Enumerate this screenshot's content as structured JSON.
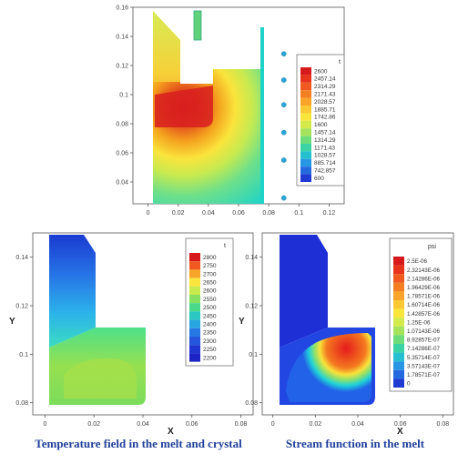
{
  "chart_data": [
    {
      "type": "contour",
      "title": "",
      "xlabel": "",
      "ylabel": "",
      "x_ticks": [
        "0",
        "0.02",
        "0.04",
        "0.06",
        "0.08",
        "0.1",
        "0.12"
      ],
      "y_ticks": [
        "0.04",
        "0.06",
        "0.08",
        "0.1",
        "0.12",
        "0.14",
        "0.16"
      ],
      "xlim": [
        -0.01,
        0.13
      ],
      "ylim": [
        0.025,
        0.16
      ],
      "legend": {
        "title": "t",
        "placement": "right",
        "values": [
          "2600",
          "2457.14",
          "2314.29",
          "2171.43",
          "2028.57",
          "1885.71",
          "1742.86",
          "1600",
          "1457.14",
          "1314.29",
          "1171.43",
          "1028.57",
          "885.714",
          "742.857",
          "600"
        ]
      },
      "markers_x": 0.09,
      "markers_y": [
        0.128,
        0.11,
        0.093,
        0.074,
        0.055,
        0.029
      ]
    },
    {
      "type": "contour",
      "title": "Temperature field in the melt and crystal",
      "xlabel": "X",
      "ylabel": "Y",
      "x_ticks": [
        "0",
        "0.02",
        "0.04",
        "0.06",
        "0.08"
      ],
      "y_ticks": [
        "0.08",
        "0.1",
        "0.12",
        "0.14"
      ],
      "xlim": [
        -0.005,
        0.085
      ],
      "ylim": [
        0.075,
        0.15
      ],
      "legend": {
        "title": "t",
        "placement": "right",
        "values": [
          "2800",
          "2750",
          "2700",
          "2650",
          "2600",
          "2550",
          "2500",
          "2450",
          "2400",
          "2350",
          "2300",
          "2250",
          "2200"
        ]
      }
    },
    {
      "type": "contour",
      "title": "Stream function in the melt",
      "xlabel": "X",
      "ylabel": "Y",
      "x_ticks": [
        "0",
        "0.02",
        "0.04",
        "0.06",
        "0.08"
      ],
      "y_ticks": [
        "0.08",
        "0.1",
        "0.12",
        "0.14"
      ],
      "xlim": [
        -0.005,
        0.085
      ],
      "ylim": [
        0.075,
        0.15
      ],
      "legend": {
        "title": "psi",
        "placement": "right",
        "values": [
          "2.5E-06",
          "2.32143E-06",
          "2.14286E-06",
          "1.96429E-06",
          "1.78571E-06",
          "1.60714E-06",
          "1.42857E-06",
          "1.25E-06",
          "1.07143E-06",
          "8.92857E-07",
          "7.14286E-07",
          "5.35714E-07",
          "3.57143E-07",
          "1.78571E-07",
          "0"
        ]
      }
    }
  ],
  "captions": {
    "left": "Temperature field in the melt and crystal",
    "right": "Stream function in the melt"
  }
}
